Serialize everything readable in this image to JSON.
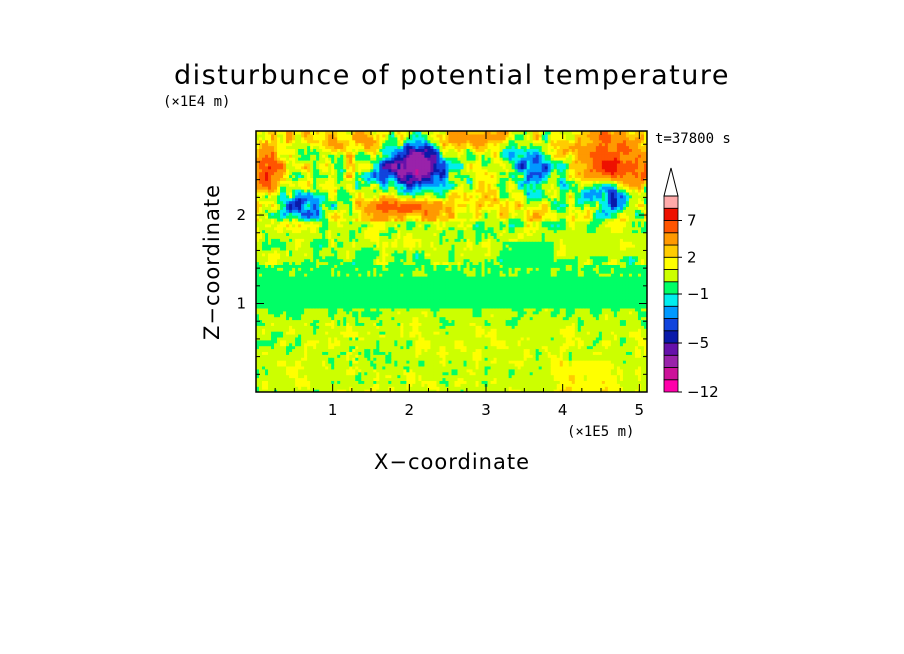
{
  "chart_data": {
    "type": "heatmap",
    "title": "disturbunce of potential temperature",
    "time_label": "t=37800 s",
    "xlabel": "X−coordinate",
    "ylabel": "Z−coordinate",
    "x_unit": "(×1E5 m)",
    "y_unit": "(×1E4 m)",
    "xlim": [
      0,
      5.1
    ],
    "ylim": [
      0,
      2.95
    ],
    "x_ticks": [
      {
        "value": 1,
        "label": "1"
      },
      {
        "value": 2,
        "label": "2"
      },
      {
        "value": 3,
        "label": "3"
      },
      {
        "value": 4,
        "label": "4"
      },
      {
        "value": 5,
        "label": "5"
      }
    ],
    "y_ticks": [
      {
        "value": 1,
        "label": "1"
      },
      {
        "value": 2,
        "label": "2"
      }
    ],
    "colorbar": {
      "levels": [
        -12,
        -10,
        -8,
        -6,
        -5,
        -4,
        -3,
        -2,
        -1,
        0,
        1,
        2,
        3,
        5,
        7,
        9,
        11
      ],
      "labeled": [
        {
          "value": 7,
          "label": "7"
        },
        {
          "value": 2,
          "label": "2"
        },
        {
          "value": -1,
          "label": "−1"
        },
        {
          "value": -5,
          "label": "−5"
        },
        {
          "value": -12,
          "label": "−12"
        }
      ],
      "colors": [
        "#ff00aa",
        "#cc1199",
        "#9922aa",
        "#6611aa",
        "#0a1aaa",
        "#1144dd",
        "#0099ff",
        "#00eeee",
        "#00ff66",
        "#ccff00",
        "#ffff00",
        "#ffcc00",
        "#ff9900",
        "#ff5500",
        "#ee1100",
        "#ffaaaa"
      ],
      "extend": "max"
    },
    "regions": [
      {
        "z": [
          0.0,
          0.95
        ],
        "value": 0.5,
        "description_level": "yellow"
      },
      {
        "z": [
          0.95,
          1.45
        ],
        "value": -0.5,
        "description_level": "green"
      },
      {
        "z": [
          1.45,
          1.9
        ],
        "value": 0.5,
        "description_level": "mixed"
      },
      {
        "z": [
          1.9,
          2.95
        ],
        "value": 2,
        "description_level": "mixed warm/cold"
      }
    ]
  }
}
